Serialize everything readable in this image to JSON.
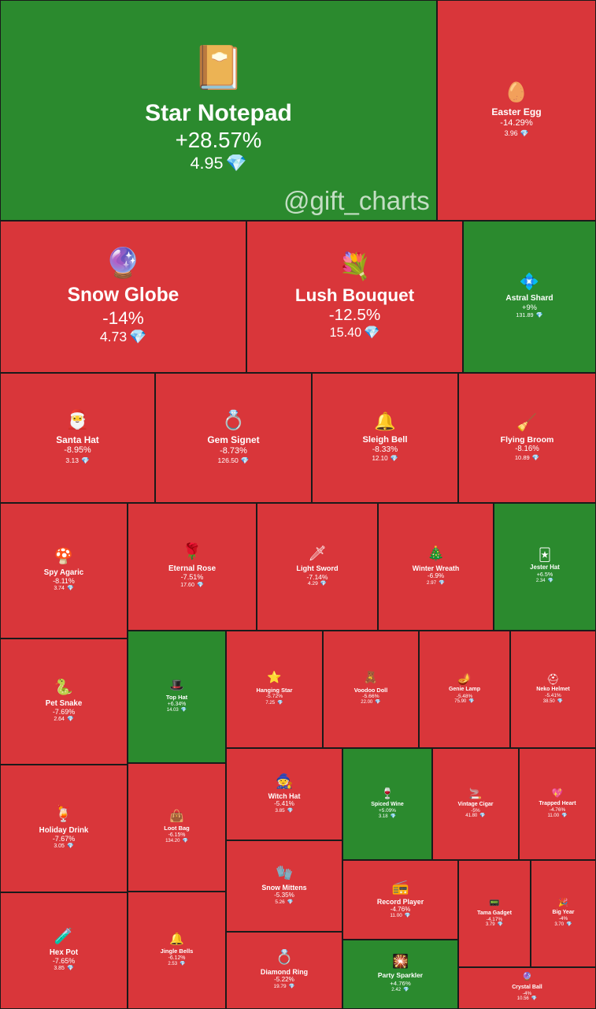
{
  "watermark": "@gift_charts",
  "colors": {
    "up": "#2b8a2e",
    "down": "#d9363a",
    "gem": "#7fd3ff"
  },
  "chart_data": {
    "type": "treemap",
    "value_unit": "💎",
    "items": [
      {
        "name": "Star Notepad",
        "change": "+28.57%",
        "price": "4.95",
        "trend": "up",
        "icon": "📔"
      },
      {
        "name": "Easter Egg",
        "change": "-14.29%",
        "price": "3.96",
        "trend": "down",
        "icon": "🥚"
      },
      {
        "name": "Snow Globe",
        "change": "-14%",
        "price": "4.73",
        "trend": "down",
        "icon": "🔮"
      },
      {
        "name": "Lush Bouquet",
        "change": "-12.5%",
        "price": "15.40",
        "trend": "down",
        "icon": "💐"
      },
      {
        "name": "Astral Shard",
        "change": "+9%",
        "price": "131.89",
        "trend": "up",
        "icon": "💠"
      },
      {
        "name": "Santa Hat",
        "change": "-8.95%",
        "price": "3.13",
        "trend": "down",
        "icon": "🎅"
      },
      {
        "name": "Gem Signet",
        "change": "-8.73%",
        "price": "126.50",
        "trend": "down",
        "icon": "💍"
      },
      {
        "name": "Sleigh Bell",
        "change": "-8.33%",
        "price": "12.10",
        "trend": "down",
        "icon": "🔔"
      },
      {
        "name": "Flying Broom",
        "change": "-8.16%",
        "price": "10.89",
        "trend": "down",
        "icon": "🧹"
      },
      {
        "name": "Spy Agaric",
        "change": "-8.11%",
        "price": "3.74",
        "trend": "down",
        "icon": "🍄"
      },
      {
        "name": "Eternal Rose",
        "change": "-7.51%",
        "price": "17.60",
        "trend": "down",
        "icon": "🌹"
      },
      {
        "name": "Light Sword",
        "change": "-7.14%",
        "price": "4.29",
        "trend": "down",
        "icon": "🗡"
      },
      {
        "name": "Winter Wreath",
        "change": "-6.9%",
        "price": "2.97",
        "trend": "down",
        "icon": "🎄"
      },
      {
        "name": "Jester Hat",
        "change": "+6.5%",
        "price": "2.34",
        "trend": "up",
        "icon": "🃏"
      },
      {
        "name": "Pet Snake",
        "change": "-7.69%",
        "price": "2.64",
        "trend": "down",
        "icon": "🐍"
      },
      {
        "name": "Top Hat",
        "change": "+6.34%",
        "price": "14.03",
        "trend": "up",
        "icon": "🎩"
      },
      {
        "name": "Hanging Star",
        "change": "-5.72%",
        "price": "7.25",
        "trend": "down",
        "icon": "⭐"
      },
      {
        "name": "Voodoo Doll",
        "change": "-5.66%",
        "price": "22.00",
        "trend": "down",
        "icon": "🧸"
      },
      {
        "name": "Genie Lamp",
        "change": "-5.48%",
        "price": "75.90",
        "trend": "down",
        "icon": "🪔"
      },
      {
        "name": "Neko Helmet",
        "change": "-5.41%",
        "price": "38.50",
        "trend": "down",
        "icon": "⛑"
      },
      {
        "name": "Holiday Drink",
        "change": "-7.67%",
        "price": "3.05",
        "trend": "down",
        "icon": "🍹"
      },
      {
        "name": "Loot Bag",
        "change": "-6.15%",
        "price": "134.20",
        "trend": "down",
        "icon": "👜"
      },
      {
        "name": "Witch Hat",
        "change": "-5.41%",
        "price": "3.85",
        "trend": "down",
        "icon": "🧙"
      },
      {
        "name": "Spiced Wine",
        "change": "+5.09%",
        "price": "3.18",
        "trend": "up",
        "icon": "🍷"
      },
      {
        "name": "Vintage Cigar",
        "change": "-5%",
        "price": "41.80",
        "trend": "down",
        "icon": "🚬"
      },
      {
        "name": "Trapped Heart",
        "change": "-4.76%",
        "price": "11.00",
        "trend": "down",
        "icon": "💖"
      },
      {
        "name": "Snow Mittens",
        "change": "-5.35%",
        "price": "5.26",
        "trend": "down",
        "icon": "🧤"
      },
      {
        "name": "Record Player",
        "change": "-4.76%",
        "price": "11.00",
        "trend": "down",
        "icon": "📻"
      },
      {
        "name": "Tama Gadget",
        "change": "-4.17%",
        "price": "3.79",
        "trend": "down",
        "icon": "📟"
      },
      {
        "name": "Big Year",
        "change": "-4%",
        "price": "3.70",
        "trend": "down",
        "icon": "🎉"
      },
      {
        "name": "Hex Pot",
        "change": "-7.65%",
        "price": "3.85",
        "trend": "down",
        "icon": "🧪"
      },
      {
        "name": "Jingle Bells",
        "change": "-6.12%",
        "price": "2.53",
        "trend": "down",
        "icon": "🔔"
      },
      {
        "name": "Diamond Ring",
        "change": "-5.22%",
        "price": "19.79",
        "trend": "down",
        "icon": "💍"
      },
      {
        "name": "Party Sparkler",
        "change": "+4.76%",
        "price": "2.42",
        "trend": "up",
        "icon": "🎇"
      },
      {
        "name": "Crystal Ball",
        "change": "-4%",
        "price": "10.56",
        "trend": "down",
        "icon": "🔮"
      }
    ]
  }
}
